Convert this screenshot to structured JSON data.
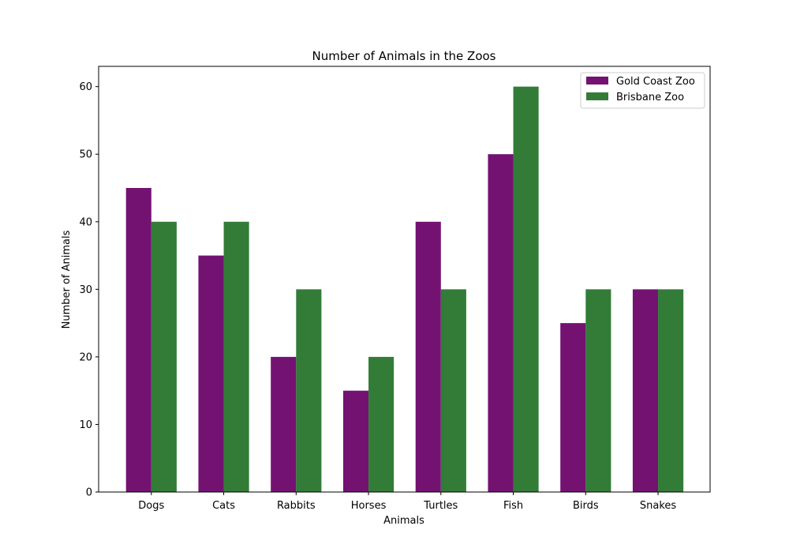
{
  "chart_data": {
    "type": "bar",
    "title": "Number of Animals in the Zoos",
    "xlabel": "Animals",
    "ylabel": "Number of Animals",
    "categories": [
      "Dogs",
      "Cats",
      "Rabbits",
      "Horses",
      "Turtles",
      "Fish",
      "Birds",
      "Snakes"
    ],
    "series": [
      {
        "name": "Gold Coast Zoo",
        "values": [
          45,
          35,
          20,
          15,
          40,
          50,
          25,
          30
        ],
        "color": "#741272"
      },
      {
        "name": "Brisbane Zoo",
        "values": [
          40,
          40,
          30,
          20,
          30,
          60,
          30,
          30
        ],
        "color": "#327c37"
      }
    ],
    "ylim": [
      0,
      63
    ],
    "yticks": [
      0,
      10,
      20,
      30,
      40,
      50,
      60
    ],
    "grid": false,
    "legend_position": "top-right"
  }
}
